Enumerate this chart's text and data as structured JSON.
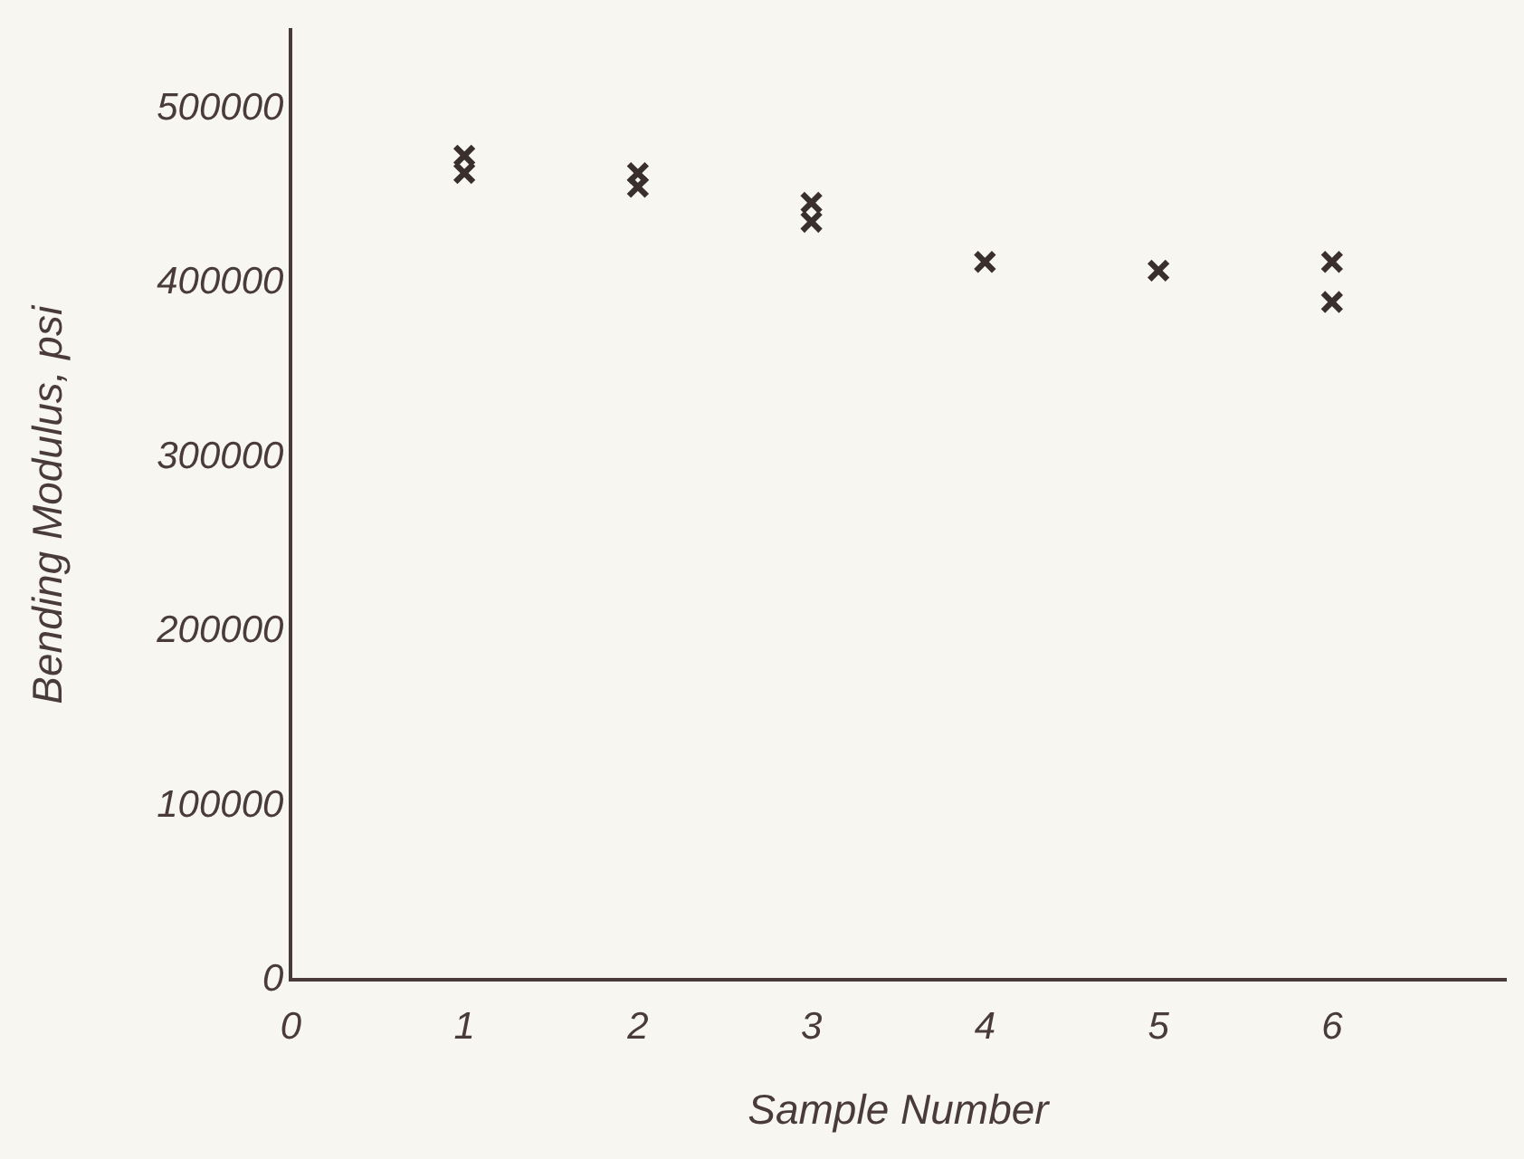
{
  "chart_data": {
    "type": "scatter",
    "xlabel": "Sample Number",
    "ylabel": "Bending Modulus, psi",
    "x": [
      1,
      1,
      2,
      2,
      3,
      3,
      4,
      5,
      6,
      6
    ],
    "values": [
      473000,
      463000,
      463000,
      455000,
      446000,
      435000,
      412000,
      407000,
      412000,
      389000
    ],
    "color": "#3a2f2f",
    "marker": "cross",
    "xlim": [
      0,
      7
    ],
    "ylim": [
      0,
      545000
    ],
    "xticks": [
      0,
      1,
      2,
      3,
      4,
      5,
      6
    ],
    "yticks": [
      0,
      100000,
      200000,
      300000,
      400000,
      500000
    ],
    "grid": false,
    "legend": false
  }
}
